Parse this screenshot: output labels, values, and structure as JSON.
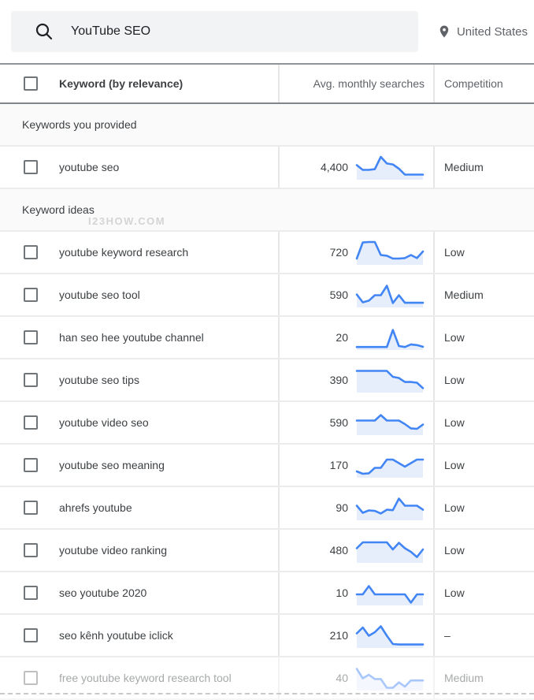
{
  "search": {
    "query": "YouTube SEO",
    "location": "United States"
  },
  "table": {
    "headers": {
      "keyword": "Keyword (by relevance)",
      "searches": "Avg. monthly searches",
      "competition": "Competition"
    },
    "sections": {
      "provided": "Keywords you provided",
      "ideas": "Keyword ideas"
    },
    "watermark": "I23HOW.COM",
    "provided_rows": [
      {
        "keyword": "youtube seo",
        "searches": "4,400",
        "competition": "Medium",
        "faded": false,
        "trend": [
          55,
          35,
          35,
          38,
          90,
          62,
          58,
          40,
          15,
          15,
          15,
          15
        ]
      }
    ],
    "idea_rows": [
      {
        "keyword": "youtube keyword research",
        "searches": "720",
        "competition": "Low",
        "faded": false,
        "trend": [
          20,
          88,
          90,
          90,
          35,
          32,
          20,
          20,
          22,
          35,
          22,
          50
        ]
      },
      {
        "keyword": "youtube seo tool",
        "searches": "590",
        "competition": "Medium",
        "faded": false,
        "trend": [
          48,
          15,
          22,
          45,
          45,
          85,
          12,
          45,
          13,
          13,
          13,
          13
        ]
      },
      {
        "keyword": "han seo hee youtube channel",
        "searches": "20",
        "competition": "Low",
        "faded": false,
        "trend": [
          6,
          6,
          6,
          6,
          6,
          6,
          78,
          10,
          6,
          17,
          14,
          7
        ]
      },
      {
        "keyword": "youtube seo tips",
        "searches": "390",
        "competition": "Low",
        "faded": false,
        "trend": [
          85,
          85,
          85,
          85,
          85,
          85,
          60,
          55,
          38,
          38,
          35,
          12
        ]
      },
      {
        "keyword": "youtube video seo",
        "searches": "590",
        "competition": "Low",
        "faded": false,
        "trend": [
          55,
          55,
          55,
          55,
          78,
          55,
          55,
          55,
          40,
          22,
          20,
          38
        ]
      },
      {
        "keyword": "youtube seo meaning",
        "searches": "170",
        "competition": "Low",
        "faded": false,
        "trend": [
          20,
          10,
          12,
          35,
          35,
          70,
          70,
          55,
          40,
          55,
          70,
          70
        ]
      },
      {
        "keyword": "ahrefs youtube",
        "searches": "90",
        "competition": "Low",
        "faded": false,
        "trend": [
          55,
          25,
          35,
          33,
          22,
          38,
          36,
          85,
          55,
          55,
          55,
          38
        ]
      },
      {
        "keyword": "youtube video ranking",
        "searches": "480",
        "competition": "Low",
        "faded": false,
        "trend": [
          55,
          80,
          80,
          80,
          80,
          80,
          50,
          78,
          55,
          40,
          18,
          50
        ]
      },
      {
        "keyword": "seo youtube 2020",
        "searches": "10",
        "competition": "Low",
        "faded": false,
        "trend": [
          40,
          40,
          75,
          40,
          40,
          40,
          40,
          40,
          40,
          5,
          40,
          40
        ]
      },
      {
        "keyword": "seo kênh youtube iclick",
        "searches": "210",
        "competition": "–",
        "faded": false,
        "trend": [
          55,
          80,
          45,
          60,
          85,
          45,
          10,
          8,
          8,
          8,
          8,
          8
        ]
      },
      {
        "keyword": "free youtube keyword research tool",
        "searches": "40",
        "competition": "Medium",
        "faded": true,
        "trend": [
          85,
          45,
          60,
          42,
          42,
          5,
          5,
          28,
          10,
          36,
          36,
          36
        ]
      }
    ]
  },
  "colors": {
    "accent_blue": "#4285f4",
    "spark_fill": "#e7eefb",
    "search_bg": "#f1f3f4",
    "text_primary": "#3c4043",
    "text_secondary": "#5f6368"
  }
}
